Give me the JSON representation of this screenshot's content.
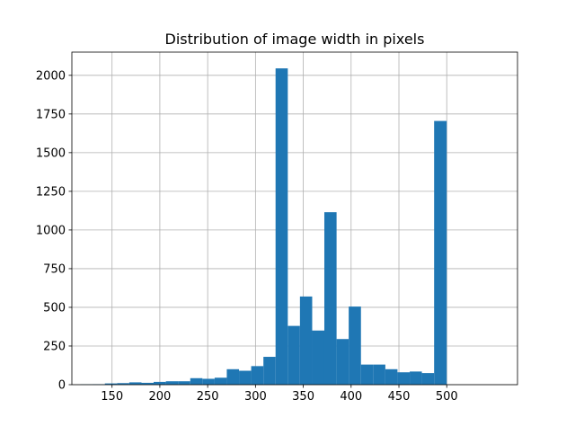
{
  "chart_data": {
    "type": "bar",
    "title": "Distribution of image width in pixels",
    "xlabel": "",
    "ylabel": "",
    "xlim": [
      108,
      574
    ],
    "ylim": [
      0,
      2150
    ],
    "xticks": [
      150,
      200,
      250,
      300,
      350,
      400,
      450,
      500
    ],
    "yticks": [
      0,
      250,
      500,
      750,
      1000,
      1250,
      1500,
      1750,
      2000
    ],
    "grid": true,
    "bar_color": "#1f77b4",
    "bin_edges": [
      117,
      129.8,
      142.5,
      155.3,
      168,
      180.8,
      193.5,
      206.3,
      219,
      231.8,
      244.5,
      257.3,
      270,
      282.8,
      295.5,
      308.3,
      321,
      333.8,
      346.5,
      359.3,
      372,
      384.8,
      397.5,
      410.3,
      423,
      435.8,
      448.5,
      461.3,
      474,
      486.8,
      500
    ],
    "values": [
      2,
      3,
      8,
      10,
      15,
      12,
      18,
      22,
      22,
      42,
      38,
      45,
      100,
      90,
      120,
      180,
      2045,
      380,
      570,
      350,
      1115,
      295,
      505,
      130,
      130,
      100,
      80,
      85,
      75,
      1705
    ]
  }
}
